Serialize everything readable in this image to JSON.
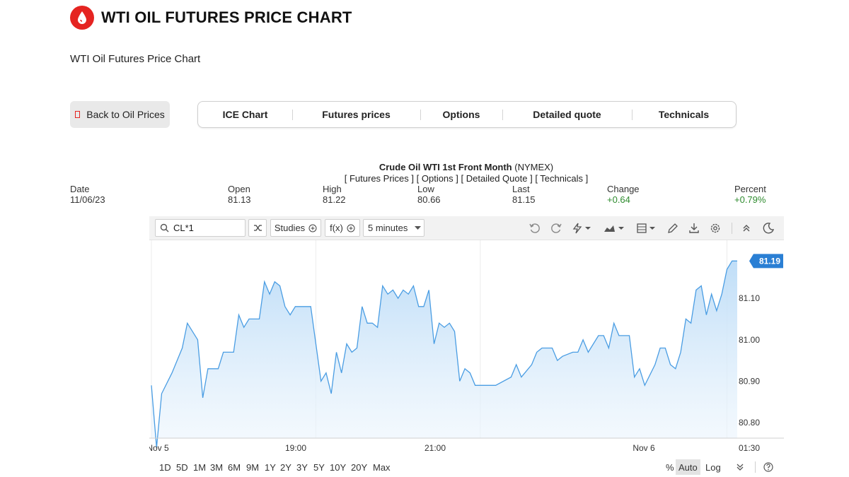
{
  "page": {
    "title": "WTI OIL FUTURES PRICE CHART",
    "subtitle": "WTI Oil Futures Price Chart"
  },
  "back_button": {
    "label": "Back to Oil Prices"
  },
  "nav_tabs": [
    {
      "label": "ICE Chart"
    },
    {
      "label": "Futures prices"
    },
    {
      "label": "Options"
    },
    {
      "label": "Detailed quote"
    },
    {
      "label": "Technicals"
    }
  ],
  "instrument": {
    "name": "Crude Oil WTI 1st Front Month",
    "exchange": "(NYMEX)",
    "links": [
      "[ Futures Prices ]",
      "[ Options ]",
      "[ Detailed Quote ]",
      "[ Technicals ]"
    ]
  },
  "quote": {
    "date_label": "Date",
    "date": "11/06/23",
    "open_label": "Open",
    "open": "81.13",
    "high_label": "High",
    "high": "81.22",
    "low_label": "Low",
    "low": "80.66",
    "last_label": "Last",
    "last": "81.15",
    "change_label": "Change",
    "change": "+0.64",
    "percent_label": "Percent",
    "percent": "+0.79%"
  },
  "toolbar": {
    "symbol": "CL*1",
    "studies_label": "Studies",
    "fx_label": "f(x)",
    "interval_label": "5 minutes",
    "icons": [
      "undo-icon",
      "redo-icon",
      "lightning-icon",
      "chart-type-icon",
      "layout-icon",
      "pencil-icon",
      "download-icon",
      "gear-icon",
      "collapse-up-icon",
      "moon-icon"
    ]
  },
  "range_bar": {
    "ranges": [
      "1D",
      "5D",
      "1M",
      "3M",
      "6M",
      "9M",
      "1Y",
      "2Y",
      "3Y",
      "5Y",
      "10Y",
      "20Y",
      "Max"
    ],
    "percent_label": "%",
    "auto_label": "Auto",
    "log_label": "Log"
  },
  "colors": {
    "brand_red": "#e52421",
    "line_blue": "#4a9de3",
    "fill_blue": "#cfe6fa",
    "price_badge": "#2a7fd4",
    "positive_green": "#2e8b2e"
  },
  "chart_data": {
    "type": "area",
    "title": "Crude Oil WTI 1st Front Month (NYMEX)",
    "interval": "5 minutes",
    "x_tick_labels": [
      "Nov 5",
      "19:00",
      "21:00",
      "Nov 6",
      "01:30"
    ],
    "x_ticks": [
      {
        "label": "Nov 5",
        "index": 0
      },
      {
        "label": "19:00",
        "index": 32
      },
      {
        "label": "21:00",
        "index": 64
      },
      {
        "label": "Nov 6",
        "index": 112
      },
      {
        "label": "01:30",
        "index": 138
      }
    ],
    "y_tick_labels": [
      "81.10",
      "81.00",
      "80.90",
      "80.80"
    ],
    "y_ticks": [
      81.1,
      81.0,
      80.9,
      80.8
    ],
    "ylim": [
      80.72,
      81.24
    ],
    "last_price_label": "81.19",
    "last_price": 81.19,
    "series": [
      {
        "points": [
          [
            0,
            80.89
          ],
          [
            1,
            80.74
          ],
          [
            2,
            80.87
          ],
          [
            4,
            80.92
          ],
          [
            6,
            80.98
          ],
          [
            7,
            81.04
          ],
          [
            9,
            81.0
          ],
          [
            10,
            80.86
          ],
          [
            11,
            80.93
          ],
          [
            13,
            80.93
          ],
          [
            14,
            80.97
          ],
          [
            16,
            80.97
          ],
          [
            17,
            81.06
          ],
          [
            18,
            81.03
          ],
          [
            19,
            81.05
          ],
          [
            21,
            81.05
          ],
          [
            22,
            81.14
          ],
          [
            23,
            81.11
          ],
          [
            24,
            81.14
          ],
          [
            25,
            81.13
          ],
          [
            26,
            81.08
          ],
          [
            27,
            81.06
          ],
          [
            28,
            81.08
          ],
          [
            31,
            81.08
          ],
          [
            33,
            80.9
          ],
          [
            34,
            80.92
          ],
          [
            35,
            80.87
          ],
          [
            36,
            80.97
          ],
          [
            37,
            80.92
          ],
          [
            38,
            80.99
          ],
          [
            39,
            80.97
          ],
          [
            40,
            80.98
          ],
          [
            41,
            81.08
          ],
          [
            42,
            81.04
          ],
          [
            43,
            81.04
          ],
          [
            44,
            81.03
          ],
          [
            45,
            81.13
          ],
          [
            46,
            81.11
          ],
          [
            47,
            81.12
          ],
          [
            48,
            81.1
          ],
          [
            49,
            81.12
          ],
          [
            50,
            81.11
          ],
          [
            51,
            81.13
          ],
          [
            52,
            81.08
          ],
          [
            53,
            81.08
          ],
          [
            54,
            81.12
          ],
          [
            55,
            80.99
          ],
          [
            56,
            81.04
          ],
          [
            57,
            81.03
          ],
          [
            58,
            81.04
          ],
          [
            59,
            81.02
          ],
          [
            60,
            80.9
          ],
          [
            61,
            80.93
          ],
          [
            62,
            80.92
          ],
          [
            63,
            80.89
          ],
          [
            67,
            80.89
          ],
          [
            70,
            80.91
          ],
          [
            71,
            80.94
          ],
          [
            72,
            80.91
          ],
          [
            74,
            80.94
          ],
          [
            75,
            80.97
          ],
          [
            76,
            80.98
          ],
          [
            78,
            80.98
          ],
          [
            79,
            80.95
          ],
          [
            80,
            80.96
          ],
          [
            82,
            80.97
          ],
          [
            83,
            80.97
          ],
          [
            84,
            81.0
          ],
          [
            85,
            80.97
          ],
          [
            87,
            81.01
          ],
          [
            88,
            81.01
          ],
          [
            89,
            80.98
          ],
          [
            90,
            81.04
          ],
          [
            91,
            81.01
          ],
          [
            93,
            81.01
          ],
          [
            94,
            80.91
          ],
          [
            95,
            80.93
          ],
          [
            96,
            80.89
          ],
          [
            98,
            80.94
          ],
          [
            99,
            80.98
          ],
          [
            100,
            80.98
          ],
          [
            101,
            80.94
          ],
          [
            102,
            80.93
          ],
          [
            103,
            80.97
          ],
          [
            104,
            81.05
          ],
          [
            105,
            81.04
          ],
          [
            106,
            81.12
          ],
          [
            107,
            81.13
          ],
          [
            108,
            81.06
          ],
          [
            109,
            81.11
          ],
          [
            110,
            81.07
          ],
          [
            111,
            81.11
          ],
          [
            112,
            81.17
          ],
          [
            113,
            81.19
          ],
          [
            114,
            81.19
          ]
        ]
      }
    ]
  }
}
